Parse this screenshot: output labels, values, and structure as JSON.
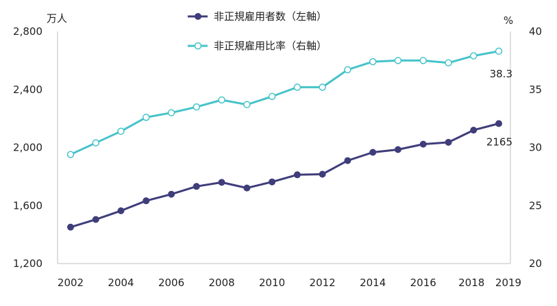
{
  "chart_data": {
    "type": "line",
    "x": [
      2002,
      2003,
      2004,
      2005,
      2006,
      2007,
      2008,
      2009,
      2010,
      2011,
      2012,
      2013,
      2014,
      2015,
      2016,
      2017,
      2018,
      2019
    ],
    "x_tick_labels": [
      "2002",
      "2004",
      "2006",
      "2008",
      "2010",
      "2012",
      "2014",
      "2016",
      "2018",
      "2019"
    ],
    "y_left": {
      "unit": "万人",
      "ylim": [
        1200,
        2800
      ],
      "ticks": [
        "1,200",
        "1,600",
        "2,000",
        "2,400",
        "2,800"
      ],
      "tick_values": [
        1200,
        1600,
        2000,
        2400,
        2800
      ]
    },
    "y_right": {
      "unit": "%",
      "ylim": [
        20,
        40
      ],
      "ticks": [
        "20",
        "25",
        "30",
        "35",
        "40"
      ],
      "tick_values": [
        20,
        25,
        30,
        35,
        40
      ]
    },
    "series": [
      {
        "name": "非正規雇用者数（左軸）",
        "axis": "left",
        "color": "#3f3d7a",
        "marker": "filled-circle",
        "values": [
          1451,
          1504,
          1564,
          1633,
          1678,
          1732,
          1760,
          1721,
          1763,
          1812,
          1816,
          1910,
          1967,
          1986,
          2023,
          2036,
          2120,
          2165
        ],
        "end_label": "2165"
      },
      {
        "name": "非正規雇用比率（右軸）",
        "axis": "right",
        "color": "#45c3c9",
        "marker": "hollow-circle",
        "values": [
          29.4,
          30.4,
          31.4,
          32.6,
          33.0,
          33.5,
          34.1,
          33.7,
          34.4,
          35.2,
          35.2,
          36.7,
          37.4,
          37.5,
          37.5,
          37.3,
          37.9,
          38.3
        ],
        "end_label": "38.3"
      }
    ],
    "legend": "top-center",
    "grid": false
  }
}
